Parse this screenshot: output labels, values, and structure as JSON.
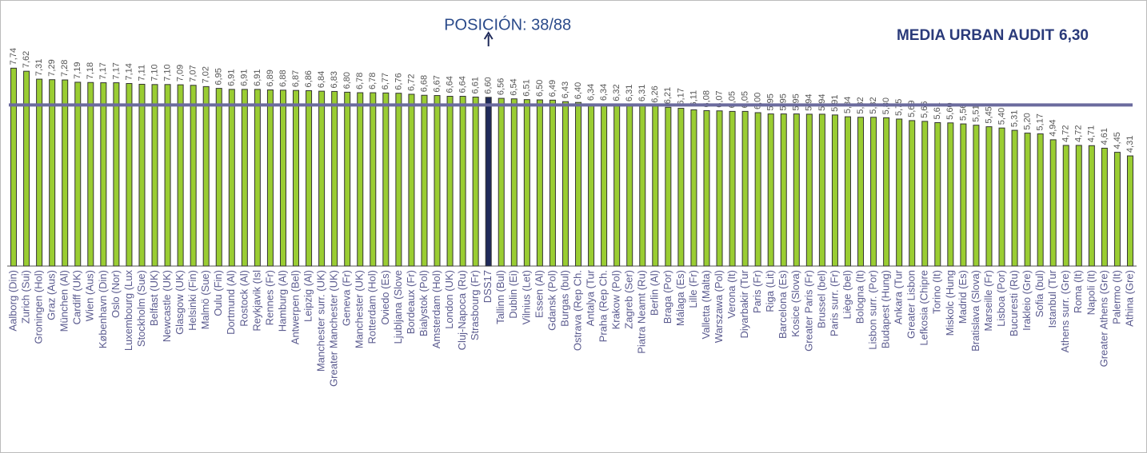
{
  "chart_data": {
    "type": "bar",
    "annotation": "POSICIÓN: 38/88",
    "reference": {
      "label": "MEDIA URBAN AUDIT",
      "value": 6.3,
      "value_label": "6,30",
      "color": "#6b6b9e"
    },
    "color": "#9acd32",
    "highlight": {
      "category": "DSS17",
      "color": "#1f2a5a"
    },
    "ylim": [
      0,
      9
    ],
    "categories": [
      "Aalborg (Din)",
      "Zurich (Sui)",
      "Groningen (Hol)",
      "Graz (Aus)",
      "München (Al)",
      "Cardiff (UK)",
      "Wien (Aus)",
      "København (Din)",
      "Oslo (Nor)",
      "Luxembourg (Lux",
      "Stockholm (Sue)",
      "Belfast (UK)",
      "Newcastle (UK)",
      "Glasgow (UK)",
      "Helsinki (Fin)",
      "Malmö (Sue)",
      "Oulu (Fin)",
      "Dortmund (Al)",
      "Rostock (Al)",
      "Reykjavik (Isl",
      "Rennes (Fr)",
      "Hamburg (Al)",
      "Antwerpen (Bel)",
      "Leipzig (Al)",
      "Manchester surr. (UK)",
      "Greater Manchester (UK)",
      "Geneva (Fr)",
      "Manchester (UK)",
      "Rotterdam (Hol)",
      "Oviedo (Es)",
      "Ljubljana (Slove",
      "Bordeaux (Fr)",
      "Bialystok (Pol)",
      "Amsterdam (Hol)",
      "London (UK)",
      "Cluj-Napoca (Ru)",
      "Strasbourg (Fr)",
      "DSS17",
      "Tallinn (Bul)",
      "Dublin (Ei)",
      "Vilnius (Let)",
      "Essen (Al)",
      "Gdansk (Pol)",
      "Burgas (bul)",
      "Ostrava (Rep Ch.",
      "Antalya (Tur",
      "Praha (Rep Ch.",
      "Krakow (Pol)",
      "Zagreb (Ser)",
      "Piatra Neamt (Ru)",
      "Berlin (Al)",
      "Braga (Por)",
      "Málaga (Es)",
      "Lille (Fr)",
      "Valletta (Malta)",
      "Warszawa (Pol)",
      "Verona (It)",
      "Diyarbakir (Tur",
      "Paris (Fr)",
      "Riga (Lit)",
      "Barcelona (Es)",
      "Kosice (Slova)",
      "Greater Paris (Fr)",
      "Brussel (bel)",
      "Paris surr. (Fr)",
      "Liège (bel)",
      "Bologna (It)",
      "Lisbon surr. (Por)",
      "Budapest (Hung)",
      "Ankara (Tur",
      "Greater Lisbon",
      "Lefkosia (Chipre",
      "Torino (It)",
      "Miskolc (Hung",
      "Madrid (Es)",
      "Bratislava (Slova)",
      "Marseille (Fr)",
      "Lisboa (Por)",
      "Bucuresti (Ru)",
      "Irakleio (Gre)",
      "Sofia (bul)",
      "Istanbul (Tur",
      "Athens surr. (Gre)",
      "Roma (It)",
      "Napoli (It)",
      "Greater Athens (Gre)",
      "Palermo (It)",
      "Athina (Gre)"
    ],
    "values": [
      7.74,
      7.62,
      7.31,
      7.29,
      7.28,
      7.19,
      7.18,
      7.17,
      7.17,
      7.14,
      7.11,
      7.1,
      7.1,
      7.09,
      7.07,
      7.02,
      6.95,
      6.91,
      6.91,
      6.91,
      6.89,
      6.88,
      6.87,
      6.86,
      6.84,
      6.83,
      6.8,
      6.78,
      6.78,
      6.77,
      6.76,
      6.72,
      6.68,
      6.67,
      6.64,
      6.64,
      6.61,
      6.6,
      6.56,
      6.54,
      6.51,
      6.5,
      6.49,
      6.43,
      6.4,
      6.34,
      6.34,
      6.32,
      6.31,
      6.31,
      6.26,
      6.21,
      6.17,
      6.11,
      6.08,
      6.07,
      6.05,
      6.05,
      6.0,
      5.95,
      5.95,
      5.95,
      5.94,
      5.94,
      5.91,
      5.84,
      5.82,
      5.82,
      5.8,
      5.75,
      5.69,
      5.66,
      5.61,
      5.6,
      5.56,
      5.51,
      5.45,
      5.4,
      5.31,
      5.2,
      5.17,
      4.94,
      4.72,
      4.72,
      4.71,
      4.61,
      4.45,
      4.31
    ],
    "value_labels": [
      "7,74",
      "7,62",
      "7,31",
      "7,29",
      "7,28",
      "7,19",
      "7,18",
      "7,17",
      "7,17",
      "7,14",
      "7,11",
      "7,10",
      "7,10",
      "7,09",
      "7,07",
      "7,02",
      "6,95",
      "6,91",
      "6,91",
      "6,91",
      "6,89",
      "6,88",
      "6,87",
      "6,86",
      "6,84",
      "6,83",
      "6,80",
      "6,78",
      "6,78",
      "6,77",
      "6,76",
      "6,72",
      "6,68",
      "6,67",
      "6,64",
      "6,64",
      "6,61",
      "6,60",
      "6,56",
      "6,54",
      "6,51",
      "6,50",
      "6,49",
      "6,43",
      "6,40",
      "6,34",
      "6,34",
      "6,32",
      "6,31",
      "6,31",
      "6,26",
      "6,21",
      "6,17",
      "6,11",
      "6,08",
      "6,07",
      "6,05",
      "6,05",
      "6,00",
      "5,95",
      "5,95",
      "5,95",
      "5,94",
      "5,94",
      "5,91",
      "5,84",
      "5,82",
      "5,82",
      "5,80",
      "5,75",
      "5,69",
      "5,66",
      "5,61",
      "5,60",
      "5,56",
      "5,51",
      "5,45",
      "5,40",
      "5,31",
      "5,20",
      "5,17",
      "4,94",
      "4,72",
      "4,72",
      "4,71",
      "4,61",
      "4,45",
      "4,31"
    ]
  }
}
